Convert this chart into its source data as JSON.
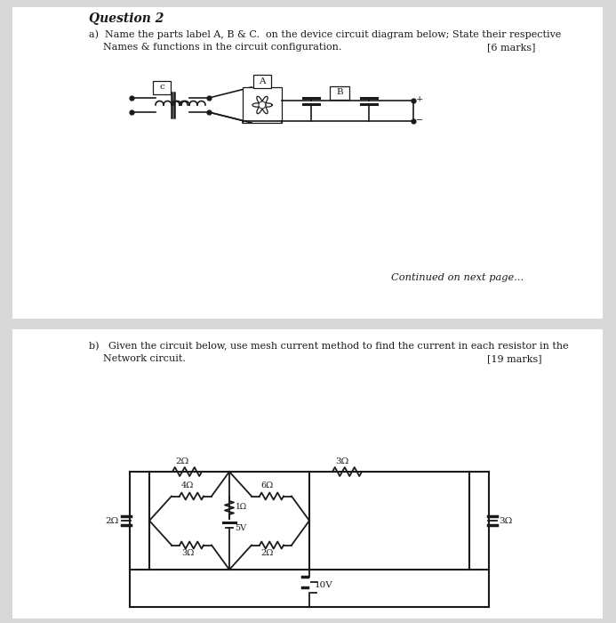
{
  "bg_color": "#d8d8d8",
  "page_color": "#ffffff",
  "text_color": "#1a1a1a",
  "line_color": "#1a1a1a",
  "title": "Question 2",
  "q2a_line1": "a)  Name the parts label A, B & C.  on the device circuit diagram below; State their respective",
  "q2a_line2": "     Names & functions in the circuit configuration.",
  "q2a_marks": "[6 marks]",
  "q2b_line1": "b)   Given the circuit below, use mesh current method to find the current in each resistor in the",
  "q2b_line2": "     Network circuit.",
  "q2b_marks": "[19 marks]",
  "continued": "Continued on next page..."
}
